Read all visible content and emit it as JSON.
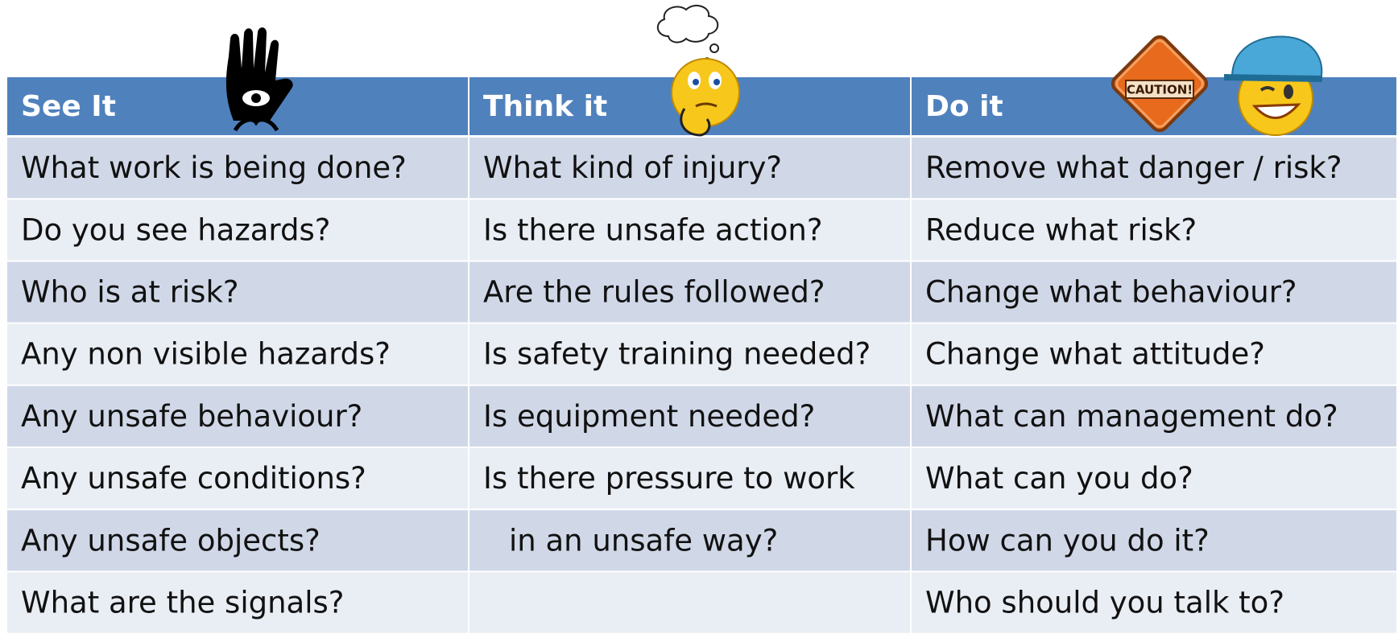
{
  "table": {
    "header": [
      "See It",
      "Think it",
      "Do it"
    ],
    "rows": [
      [
        "What work is being done?",
        "What kind of injury?",
        "Remove what danger / risk?"
      ],
      [
        "Do you see hazards?",
        "Is there unsafe action?",
        "Reduce what risk?"
      ],
      [
        "Who is at risk?",
        "Are the rules followed?",
        "Change what behaviour?"
      ],
      [
        "Any non visible hazards?",
        "Is safety training needed?",
        "Change what attitude?"
      ],
      [
        "Any unsafe behaviour?",
        "Is equipment needed?",
        "What can management do?"
      ],
      [
        "Any unsafe conditions?",
        "Is there pressure to work",
        "What can you do?"
      ],
      [
        "Any unsafe objects?",
        "in an unsafe way?",
        "How can you do it?"
      ],
      [
        "What are the signals?",
        null,
        "Who should you talk to?"
      ]
    ]
  }
}
